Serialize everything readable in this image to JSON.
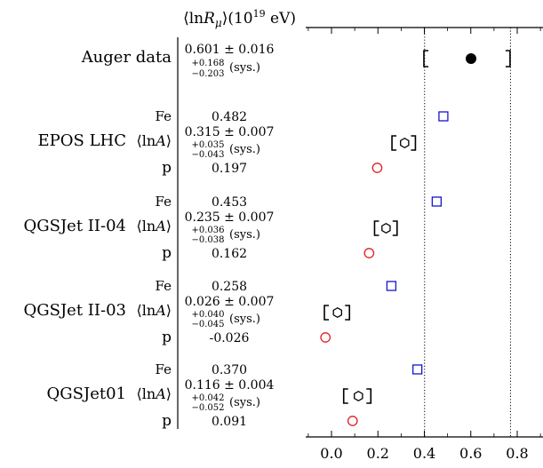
{
  "chart_data": {
    "type": "scatter",
    "title": "⟨lnR_μ⟩(10^19 eV)",
    "title_parts": {
      "open": "⟨ln",
      "R": "R",
      "mu": "μ",
      "close": "⟩(10",
      "exp": "19",
      "unit": " eV)"
    },
    "xlim": [
      -0.1,
      0.9
    ],
    "xticks": [
      0.0,
      0.2,
      0.4,
      0.6,
      0.8
    ],
    "xtick_labels": [
      "0.0",
      "0.2",
      "0.4",
      "0.6",
      "0.8"
    ],
    "reference_lines": [
      0.401,
      0.771
    ],
    "auger": {
      "label": "Auger data",
      "value_text": "0.601 ± 0.016",
      "sys_plus": "+0.168",
      "sys_minus": "−0.203",
      "sys_suffix": "(sys.)",
      "value": 0.601,
      "stat_err": 0.016,
      "sys_up": 0.168,
      "sys_down": 0.203
    },
    "models": [
      {
        "name": "EPOS LHC",
        "lnA_label": "⟨lnA⟩",
        "lnA_open": "⟨ln",
        "lnA_A": "A",
        "lnA_close": "⟩",
        "fe_label": "Fe",
        "p_label": "p",
        "fe_text": "0.482",
        "fe": 0.482,
        "mix_text": "0.315 ± 0.007",
        "mix": 0.315,
        "mix_stat": 0.007,
        "sys_plus": "+0.035",
        "sys_minus": "−0.043",
        "sys_suffix": "(sys.)",
        "sys_up": 0.035,
        "sys_down": 0.043,
        "p_text": "0.197",
        "p": 0.197
      },
      {
        "name": "QGSJet II-04",
        "lnA_label": "⟨lnA⟩",
        "lnA_open": "⟨ln",
        "lnA_A": "A",
        "lnA_close": "⟩",
        "fe_label": "Fe",
        "p_label": "p",
        "fe_text": "0.453",
        "fe": 0.453,
        "mix_text": "0.235 ± 0.007",
        "mix": 0.235,
        "mix_stat": 0.007,
        "sys_plus": "+0.036",
        "sys_minus": "−0.038",
        "sys_suffix": "(sys.)",
        "sys_up": 0.036,
        "sys_down": 0.038,
        "p_text": "0.162",
        "p": 0.162
      },
      {
        "name": "QGSJet II-03",
        "lnA_label": "⟨lnA⟩",
        "lnA_open": "⟨ln",
        "lnA_A": "A",
        "lnA_close": "⟩",
        "fe_label": "Fe",
        "p_label": "p",
        "fe_text": "0.258",
        "fe": 0.258,
        "mix_text": "0.026 ± 0.007",
        "mix": 0.026,
        "mix_stat": 0.007,
        "sys_plus": "+0.040",
        "sys_minus": "−0.045",
        "sys_suffix": "(sys.)",
        "sys_up": 0.04,
        "sys_down": 0.045,
        "p_text": "-0.026",
        "p": -0.026
      },
      {
        "name": "QGSJet01",
        "lnA_label": "⟨lnA⟩",
        "lnA_open": "⟨ln",
        "lnA_A": "A",
        "lnA_close": "⟩",
        "fe_label": "Fe",
        "p_label": "p",
        "fe_text": "0.370",
        "fe": 0.37,
        "mix_text": "0.116 ± 0.004",
        "mix": 0.116,
        "mix_stat": 0.004,
        "sys_plus": "+0.042",
        "sys_minus": "−0.052",
        "sys_suffix": "(sys.)",
        "sys_up": 0.042,
        "sys_down": 0.052,
        "p_text": "0.091",
        "p": 0.091
      }
    ],
    "colors": {
      "fe": "#1515cc",
      "p": "#e02020",
      "data": "#000000",
      "mixture": "#000000"
    },
    "markers": {
      "fe": "open-square",
      "p": "open-circle",
      "data": "filled-circle",
      "mixture": "open-hexagon"
    },
    "grid": false,
    "legend": "none"
  }
}
